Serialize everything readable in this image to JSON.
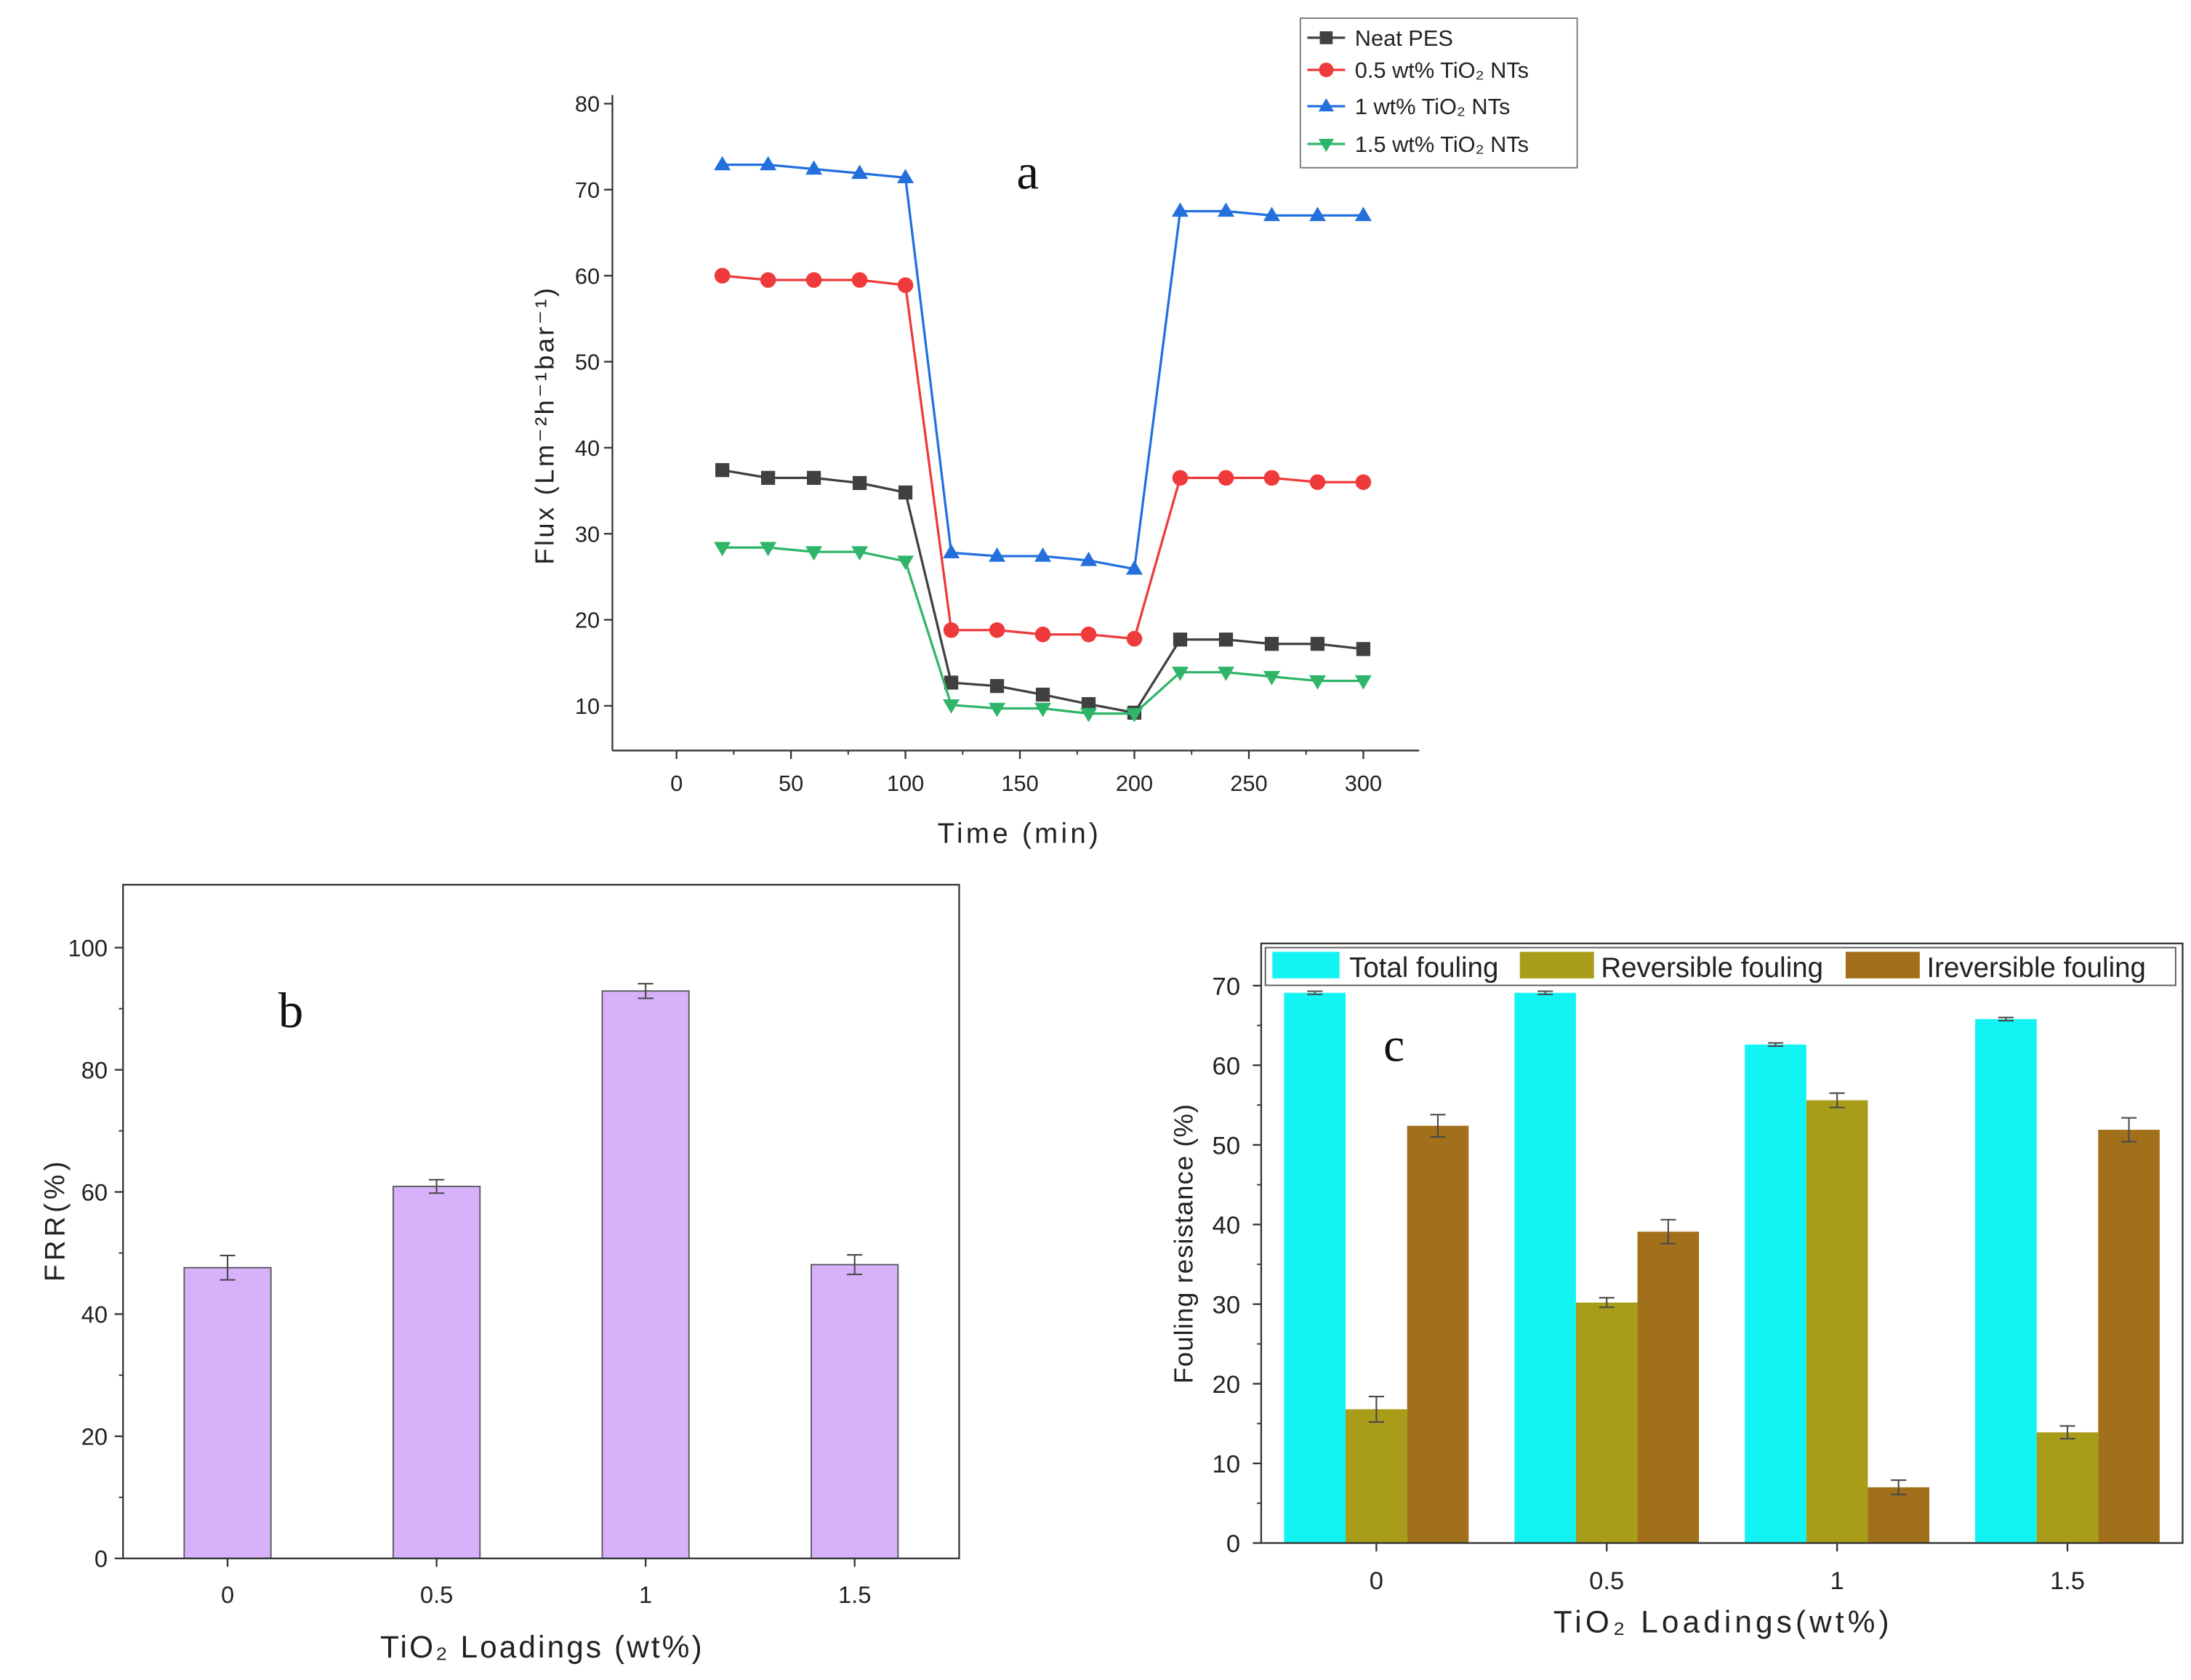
{
  "chart_data": [
    {
      "type": "line",
      "panel_label": "a",
      "xlabel": "Time (min)",
      "ylabel": "Flux (Lm⁻²h⁻¹bar⁻¹)",
      "xlim": [
        -28,
        324.4
      ],
      "ylim": [
        4.8,
        81
      ],
      "xticks": [
        0,
        50,
        100,
        150,
        200,
        250,
        300
      ],
      "yticks": [
        10,
        20,
        30,
        40,
        50,
        60,
        70,
        80
      ],
      "grid": false,
      "x": [
        20,
        40,
        60,
        80,
        100,
        120,
        140,
        160,
        180,
        200,
        220,
        240,
        260,
        280,
        300
      ],
      "series": [
        {
          "name": "Neat PES",
          "color": "#404040",
          "marker": "square",
          "values": [
            37.4,
            36.5,
            36.5,
            35.9,
            34.8,
            12.7,
            12.3,
            11.3,
            10.2,
            9.2,
            17.7,
            17.7,
            17.2,
            17.2,
            16.6
          ]
        },
        {
          "name": "0.5 wt% TiO₂ NTs",
          "color": "#ee3a3a",
          "marker": "circle",
          "values": [
            60.0,
            59.5,
            59.5,
            59.5,
            58.9,
            18.8,
            18.8,
            18.3,
            18.3,
            17.8,
            36.5,
            36.5,
            36.5,
            36.0,
            36.0
          ]
        },
        {
          "name": "1 wt% TiO₂ NTs",
          "color": "#2370dd",
          "marker": "triangle-up",
          "values": [
            72.9,
            72.9,
            72.4,
            71.9,
            71.4,
            27.8,
            27.4,
            27.4,
            26.9,
            25.9,
            67.5,
            67.5,
            67.0,
            67.0,
            67.0
          ]
        },
        {
          "name": "1.5 wt% TiO₂ NTs",
          "color": "#2fb56a",
          "marker": "triangle-down",
          "values": [
            28.4,
            28.4,
            27.9,
            27.9,
            26.8,
            10.1,
            9.7,
            9.7,
            9.1,
            9.1,
            13.9,
            13.9,
            13.4,
            12.9,
            12.9
          ]
        }
      ]
    },
    {
      "type": "bar",
      "panel_label": "b",
      "xlabel": "TiO₂ Loadings (wt%)",
      "ylabel": "FRR(%)",
      "ylim": [
        0,
        110.3
      ],
      "yticks": [
        0,
        20,
        40,
        60,
        80,
        100
      ],
      "grid": false,
      "categories": [
        "0",
        "0.5",
        "1",
        "1.5"
      ],
      "values": [
        47.6,
        60.9,
        92.9,
        48.1
      ],
      "errors": [
        2.0,
        1.1,
        1.2,
        1.6
      ],
      "color": "#d8b1fb",
      "edge_color": "#5c5c5c"
    },
    {
      "type": "bar",
      "panel_label": "c",
      "xlabel": "TiO₂ Loadings(wt%)",
      "ylabel": "Fouling resistance (%)",
      "ylim": [
        0,
        75.3
      ],
      "yticks": [
        0,
        10,
        20,
        30,
        40,
        50,
        60,
        70
      ],
      "grid": false,
      "categories": [
        "0",
        "0.5",
        "1",
        "1.5"
      ],
      "series": [
        {
          "name": "Total fouling",
          "color": "#12f3f3",
          "values": [
            69.1,
            69.1,
            62.6,
            65.8
          ],
          "errors": [
            0.2,
            0.2,
            0.2,
            0.2
          ]
        },
        {
          "name": "Reversible fouling",
          "color": "#a89c18",
          "values": [
            16.8,
            30.2,
            55.6,
            13.9
          ],
          "errors": [
            1.6,
            0.6,
            0.9,
            0.8
          ]
        },
        {
          "name": "Ireversible fouling",
          "color": "#a2701a",
          "values": [
            52.4,
            39.1,
            7.0,
            51.9
          ],
          "errors": [
            1.4,
            1.5,
            0.9,
            1.5
          ]
        }
      ]
    }
  ]
}
